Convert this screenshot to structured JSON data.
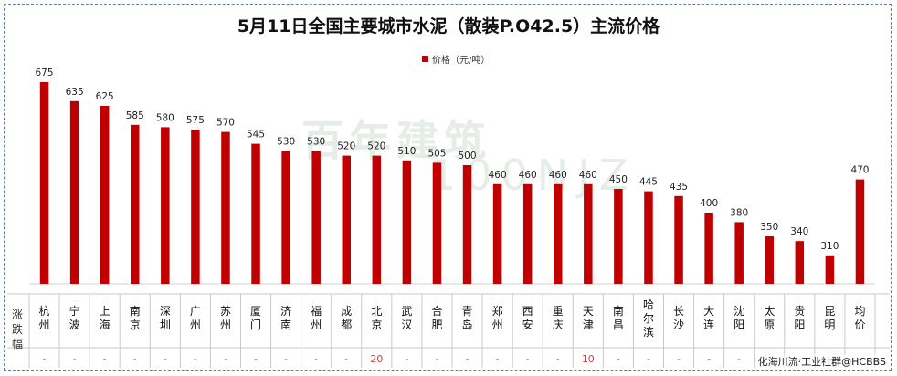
{
  "title": "5月11日全国主要城市水泥（散装P.O42.5）主流价格",
  "legend": {
    "label": "价格（元/吨）"
  },
  "table": {
    "row_header": "涨跌幅"
  },
  "watermark": "化海川流·工业社群@HCBBS",
  "background_mark": {
    "line1": "百年建筑",
    "line2": "100NJZ"
  },
  "colors": {
    "bar": "#c00000",
    "positive_change": "#d04040",
    "border": "#5b7fb0"
  },
  "chart_data": {
    "type": "bar",
    "categories": [
      "杭州",
      "宁波",
      "上海",
      "南京",
      "深圳",
      "广州",
      "苏州",
      "厦门",
      "济南",
      "福州",
      "成都",
      "北京",
      "武汉",
      "合肥",
      "青岛",
      "郑州",
      "西安",
      "重庆",
      "天津",
      "南昌",
      "哈尔滨",
      "长沙",
      "大连",
      "沈阳",
      "太原",
      "贵阳",
      "昆明",
      "均价"
    ],
    "series": [
      {
        "name": "价格（元/吨）",
        "values": [
          675,
          635,
          625,
          585,
          580,
          575,
          570,
          545,
          530,
          530,
          520,
          520,
          510,
          505,
          500,
          460,
          460,
          460,
          460,
          450,
          445,
          435,
          400,
          380,
          350,
          340,
          310,
          470
        ]
      }
    ],
    "changes": [
      "-",
      "-",
      "-",
      "-",
      "-",
      "-",
      "-",
      "-",
      "-",
      "-",
      "-",
      "20",
      "-",
      "-",
      "-",
      "-",
      "-",
      "-",
      "10",
      "-",
      "-",
      "-",
      "-",
      "-",
      "-",
      "-",
      "-",
      "-"
    ],
    "ylim": [
      250,
      700
    ],
    "grid": false
  }
}
